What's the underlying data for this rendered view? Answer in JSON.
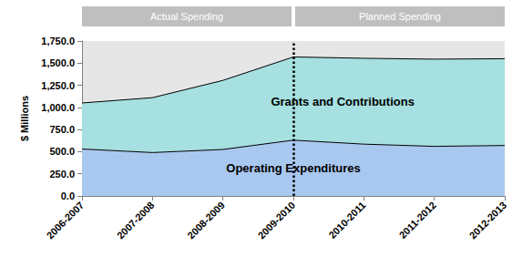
{
  "chart_data": {
    "type": "area",
    "y_label": "$ Millions",
    "categories": [
      "2006-2007",
      "2007-2008",
      "2008-2009",
      "2009-2010",
      "2010-2011",
      "2011-2012",
      "2012-2013"
    ],
    "series": [
      {
        "name": "Operating Expenditures",
        "color": "#a9c8ef",
        "values": [
          530,
          490,
          525,
          630,
          585,
          560,
          570
        ]
      },
      {
        "name": "Grants and Contributions",
        "color": "#a6e0e0",
        "values": [
          520,
          620,
          780,
          940,
          970,
          985,
          980
        ]
      }
    ],
    "stacked": true,
    "ylim": [
      0,
      1750
    ],
    "yticks": [
      {
        "value": 0,
        "label": "0.0"
      },
      {
        "value": 250,
        "label": "250.0"
      },
      {
        "value": 500,
        "label": "500.0"
      },
      {
        "value": 750,
        "label": "750.0"
      },
      {
        "value": 1000,
        "label": "1,000.0"
      },
      {
        "value": 1250,
        "label": "1,250.0"
      },
      {
        "value": 1500,
        "label": "1,500.0"
      },
      {
        "value": 1750,
        "label": "1,750.0"
      }
    ],
    "grid": false,
    "annotations": [
      {
        "text": "Actual Spending",
        "from": "2006-2007",
        "to": "2009-2010"
      },
      {
        "text": "Planned Spending",
        "from": "2009-2010",
        "to": "2012-2013"
      }
    ]
  }
}
